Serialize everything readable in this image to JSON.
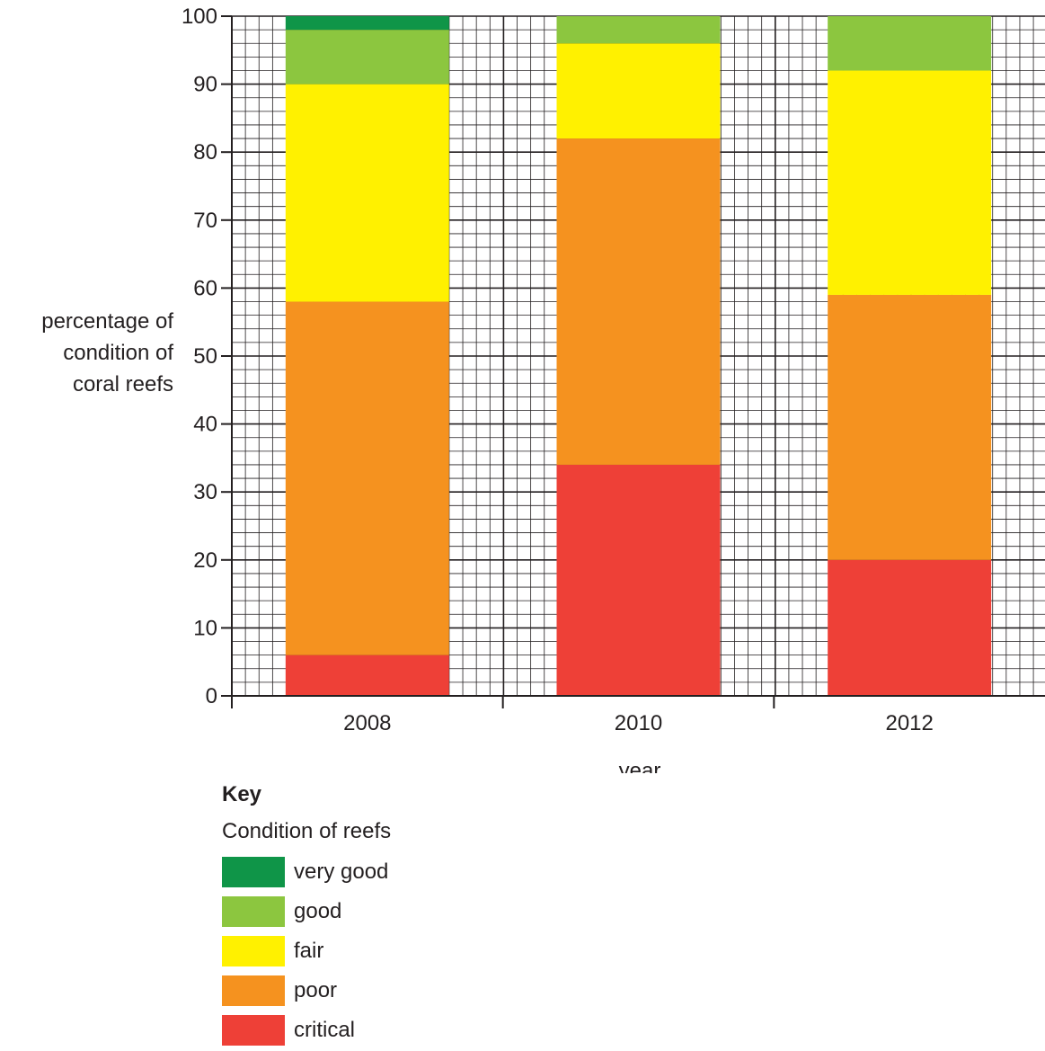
{
  "chart_data": {
    "type": "bar",
    "stacked": true,
    "categories": [
      "2008",
      "2010",
      "2012"
    ],
    "series": [
      {
        "name": "critical",
        "color": "#ee4037",
        "values": [
          6,
          34,
          20
        ]
      },
      {
        "name": "poor",
        "color": "#f5921f",
        "values": [
          52,
          48,
          39
        ]
      },
      {
        "name": "fair",
        "color": "#fff100",
        "values": [
          32,
          14,
          33
        ]
      },
      {
        "name": "good",
        "color": "#8cc63f",
        "values": [
          8,
          4,
          8
        ]
      },
      {
        "name": "very good",
        "color": "#0f9548",
        "values": [
          2,
          0,
          0
        ]
      }
    ],
    "yticks": [
      "0",
      "10",
      "20",
      "30",
      "40",
      "50",
      "60",
      "70",
      "80",
      "90",
      "100"
    ],
    "ylim": [
      0,
      100
    ],
    "xlabel": "year",
    "ylabel": "percentage of\ncondition of\ncoral reefs",
    "grid": true,
    "legend": {
      "title": "Key",
      "subtitle": "Condition of reefs",
      "placement": "bottom-left",
      "items": [
        {
          "label": "very good",
          "color": "#0f9548"
        },
        {
          "label": "good",
          "color": "#8cc63f"
        },
        {
          "label": "fair",
          "color": "#fff100"
        },
        {
          "label": "poor",
          "color": "#f5921f"
        },
        {
          "label": "critical",
          "color": "#ee4037"
        }
      ]
    }
  }
}
